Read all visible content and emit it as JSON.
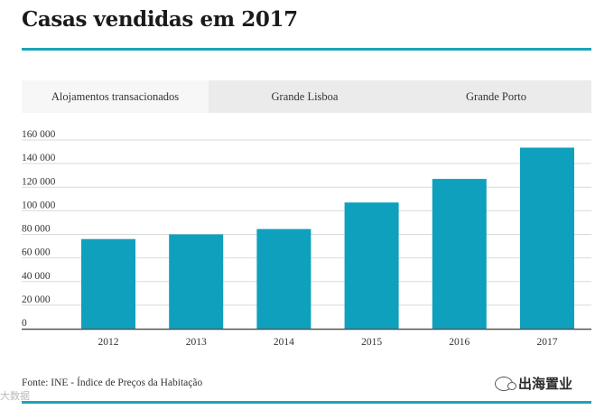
{
  "header": {
    "title": "Casas vendidas em 2017"
  },
  "tabs": [
    {
      "label": "Alojamentos transacionados",
      "active": true
    },
    {
      "label": "Grande Lisboa",
      "active": false
    },
    {
      "label": "Grande Porto",
      "active": false
    }
  ],
  "footer": {
    "source": "Fonte: INE - Índice de Preços da Habitação"
  },
  "watermarks": {
    "left": "大数据",
    "right": "出海置业"
  },
  "colors": {
    "bar": "#0ea0bd",
    "accent_rule": "#1ea3b8",
    "tab_bar": "#ebebeb"
  },
  "chart_data": {
    "type": "bar",
    "categories": [
      "2012",
      "2013",
      "2014",
      "2015",
      "2016",
      "2017"
    ],
    "values": [
      76000,
      80000,
      84500,
      107000,
      127000,
      153500
    ],
    "ylim": [
      0,
      160000
    ],
    "yticks": [
      0,
      20000,
      40000,
      60000,
      80000,
      100000,
      120000,
      140000,
      160000
    ],
    "ytick_labels": [
      "0",
      "20 000",
      "40 000",
      "60 000",
      "80 000",
      "100 000",
      "120 000",
      "140 000",
      "160 000"
    ],
    "grid": true,
    "title": "",
    "xlabel": "",
    "ylabel": ""
  }
}
